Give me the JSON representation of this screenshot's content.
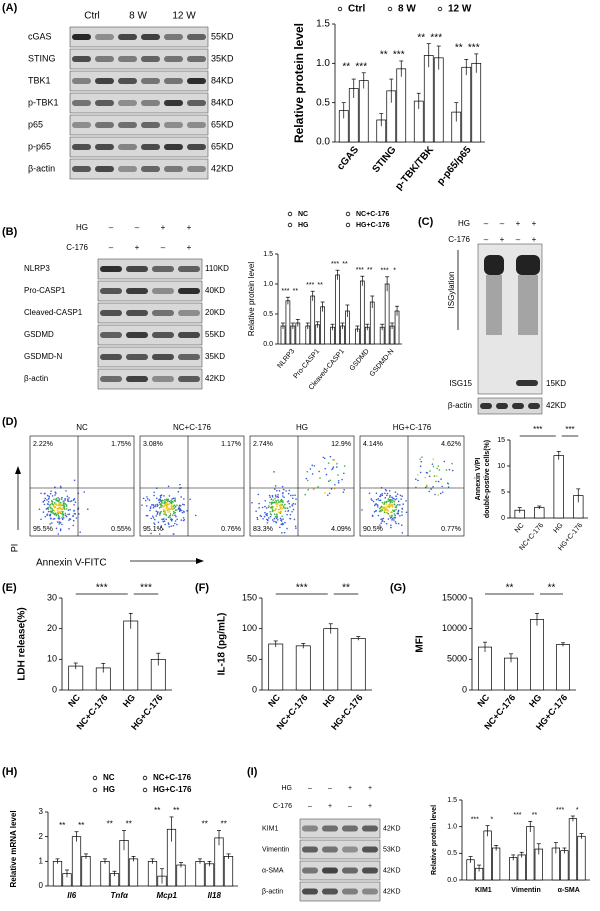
{
  "panel_labels": [
    "(A)",
    "(B)",
    "(C)",
    "(D)",
    "(E)",
    "(F)",
    "(G)",
    "(H)",
    "(I)"
  ],
  "blot_a": {
    "lanes": [
      "Ctrl",
      "8 W",
      "12 W"
    ],
    "rows": [
      {
        "protein": "cGAS",
        "size": "55KD"
      },
      {
        "protein": "STING",
        "size": "35KD"
      },
      {
        "protein": "TBK1",
        "size": "84KD"
      },
      {
        "protein": "p-TBK1",
        "size": "84KD"
      },
      {
        "protein": "p65",
        "size": "65KD"
      },
      {
        "protein": "p-p65",
        "size": "65KD"
      },
      {
        "protein": "β-actin",
        "size": "42KD"
      }
    ]
  },
  "blot_b": {
    "conditions": [
      {
        "name": "HG",
        "marks": [
          "–",
          "–",
          "+",
          "+"
        ]
      },
      {
        "name": "C-176",
        "marks": [
          "–",
          "+",
          "–",
          "+"
        ]
      }
    ],
    "rows": [
      {
        "protein": "NLRP3",
        "size": "110KD"
      },
      {
        "protein": "Pro-CASP1",
        "size": "40KD"
      },
      {
        "protein": "Cleaved-CASP1",
        "size": "20KD"
      },
      {
        "protein": "GSDMD",
        "size": "55KD"
      },
      {
        "protein": "GSDMD-N",
        "size": "35KD"
      },
      {
        "protein": "β-actin",
        "size": "42KD"
      }
    ]
  },
  "blot_c": {
    "conditions": [
      {
        "name": "HG",
        "marks": [
          "–",
          "–",
          "+",
          "+"
        ]
      },
      {
        "name": "C-176",
        "marks": [
          "–",
          "+",
          "–",
          "+"
        ]
      }
    ],
    "smear_label": "ISGylation",
    "rows": [
      {
        "protein": "ISG15",
        "size": "15KD"
      },
      {
        "protein": "β-actin",
        "size": "42KD"
      }
    ]
  },
  "blot_i": {
    "conditions": [
      {
        "name": "HG",
        "marks": [
          "–",
          "–",
          "+",
          "+"
        ]
      },
      {
        "name": "C-176",
        "marks": [
          "–",
          "+",
          "–",
          "+"
        ]
      }
    ],
    "rows": [
      {
        "protein": "KIM1",
        "size": "42KD"
      },
      {
        "protein": "Vimentin",
        "size": "53KD"
      },
      {
        "protein": "α-SMA",
        "size": "42KD"
      },
      {
        "protein": "β-actin",
        "size": "42KD"
      }
    ]
  },
  "flow": {
    "y_label": "PI",
    "x_label": "Annexin V-FITC",
    "plots": [
      {
        "title": "NC",
        "quadrants": [
          "2.22%",
          "1.75%",
          "95.5%",
          "0.55%"
        ]
      },
      {
        "title": "NC+C-176",
        "quadrants": [
          "3.08%",
          "1.17%",
          "95.1%",
          "0.76%"
        ]
      },
      {
        "title": "HG",
        "quadrants": [
          "2.74%",
          "12.9%",
          "83.3%",
          "4.09%"
        ]
      },
      {
        "title": "HG+C-176",
        "quadrants": [
          "4.14%",
          "4.62%",
          "90.5%",
          "0.77%"
        ]
      }
    ]
  },
  "chart_data": [
    {
      "type": "bar",
      "y_label": "Relative protein level",
      "categories": [
        "cGAS",
        "STING",
        "p-TBK/TBK",
        "p-p65/p65"
      ],
      "series": [
        {
          "name": "Ctrl",
          "color": "#ffffff",
          "values": [
            0.4,
            0.28,
            0.52,
            0.38
          ],
          "errors": [
            0.1,
            0.08,
            0.1,
            0.12
          ]
        },
        {
          "name": "8 W",
          "color": "#ffffff",
          "values": [
            0.68,
            0.65,
            1.1,
            0.95
          ],
          "errors": [
            0.12,
            0.15,
            0.15,
            0.1
          ]
        },
        {
          "name": "12 W",
          "color": "#ffffff",
          "values": [
            0.78,
            0.93,
            1.07,
            1.0
          ],
          "errors": [
            0.1,
            0.1,
            0.15,
            0.12
          ]
        }
      ],
      "ylim": [
        0,
        1.5
      ],
      "yticks": [
        {
          "value": 0,
          "label": "0.0"
        },
        0.5,
        {
          "value": 1,
          "label": "1.0"
        },
        1.5
      ],
      "annotations": [
        [
          "**",
          "***"
        ],
        [
          "**",
          "***"
        ],
        [
          "**",
          "***"
        ],
        [
          "**",
          "***"
        ]
      ]
    },
    {
      "type": "bar",
      "y_label": "Relative protein level",
      "categories": [
        "NLRP3",
        "Pro-CASP1",
        "Cleaved-CASP1",
        "GSDMD",
        "GSDMD-N"
      ],
      "series": [
        {
          "name": "NC",
          "color": "#ffffff",
          "values": [
            0.3,
            0.3,
            0.28,
            0.25,
            0.28
          ],
          "errors": [
            0.05,
            0.05,
            0.05,
            0.05,
            0.05
          ]
        },
        {
          "name": "HG",
          "color": "#ffffff",
          "values": [
            0.72,
            0.8,
            1.15,
            1.05,
            1.0
          ],
          "errors": [
            0.06,
            0.08,
            0.08,
            0.08,
            0.12
          ]
        },
        {
          "name": "NC+C-176",
          "color": "#ffffff",
          "values": [
            0.3,
            0.32,
            0.3,
            0.28,
            0.3
          ],
          "errors": [
            0.05,
            0.05,
            0.05,
            0.05,
            0.05
          ]
        },
        {
          "name": "HG+C-176",
          "color": "#ffffff",
          "values": [
            0.35,
            0.62,
            0.55,
            0.7,
            0.55
          ],
          "errors": [
            0.06,
            0.08,
            0.1,
            0.1,
            0.08
          ]
        }
      ],
      "ylim": [
        0,
        1.5
      ],
      "yticks": [
        {
          "value": 0,
          "label": "0.0"
        },
        0.5,
        {
          "value": 1,
          "label": "1.0"
        },
        1.5
      ],
      "annotations": [
        [
          "***",
          "**"
        ],
        [
          "***",
          "**"
        ],
        [
          "***",
          "**"
        ],
        [
          "***",
          "**"
        ],
        [
          "***",
          "*"
        ]
      ]
    },
    {
      "type": "bar",
      "y_label": [
        "Annexin V/PI",
        "double-postive cells(%)"
      ],
      "categories": [
        "NC",
        "NC+C-176",
        "HG",
        "HG+C-176"
      ],
      "values": [
        1.5,
        2,
        12,
        4.3
      ],
      "errors": [
        0.5,
        0.3,
        0.8,
        1.3
      ],
      "color": "#ffffff",
      "ylim": [
        0,
        15
      ],
      "yticks": [
        0,
        5,
        10,
        15
      ],
      "annotations": [
        "***",
        "***"
      ]
    },
    {
      "type": "bar",
      "y_label": "LDH release(%)",
      "categories": [
        "NC",
        "NC+C-176",
        "HG",
        "HG+C-176"
      ],
      "values": [
        7.8,
        7.2,
        22.5,
        10
      ],
      "errors": [
        1,
        1.5,
        2.5,
        2
      ],
      "color": "#ffffff",
      "ylim": [
        0,
        30
      ],
      "yticks": [
        0,
        10,
        20,
        30
      ],
      "annotations": [
        "***",
        "***"
      ]
    },
    {
      "type": "bar",
      "y_label": "IL-18 (pg/mL)",
      "categories": [
        "NC",
        "NC+C-176",
        "HG",
        "HG+C-176"
      ],
      "values": [
        75,
        72,
        100,
        84
      ],
      "errors": [
        5,
        4,
        8,
        3
      ],
      "color": "#ffffff",
      "ylim": [
        0,
        150
      ],
      "yticks": [
        0,
        50,
        100,
        150
      ],
      "annotations": [
        "***",
        "**"
      ]
    },
    {
      "type": "bar",
      "y_label": "MFI",
      "categories": [
        "NC",
        "NC+C-176",
        "HG",
        "HG+C-176"
      ],
      "values": [
        7000,
        5200,
        11500,
        7400
      ],
      "errors": [
        800,
        700,
        1000,
        300
      ],
      "color": "#ffffff",
      "ylim": [
        0,
        15000
      ],
      "yticks": [
        0,
        5000,
        10000,
        15000
      ],
      "annotations": [
        "**",
        "**"
      ]
    },
    {
      "type": "bar",
      "y_label": "Relative mRNA level",
      "categories": [
        "Il6",
        "Tnfα",
        "Mcp1",
        "Il18"
      ],
      "series": [
        {
          "name": "NC",
          "color": "#ffffff",
          "values": [
            1.0,
            1.0,
            1.0,
            1.0
          ],
          "errors": [
            0.1,
            0.1,
            0.1,
            0.1
          ]
        },
        {
          "name": "NC+C-176",
          "color": "#ffffff",
          "values": [
            0.5,
            0.5,
            0.4,
            0.9
          ],
          "errors": [
            0.15,
            0.1,
            0.3,
            0.1
          ]
        },
        {
          "name": "HG",
          "color": "#ffffff",
          "values": [
            2.0,
            1.85,
            2.3,
            1.95
          ],
          "errors": [
            0.2,
            0.4,
            0.5,
            0.3
          ]
        },
        {
          "name": "HG+C-176",
          "color": "#ffffff",
          "values": [
            1.2,
            1.1,
            0.85,
            1.2
          ],
          "errors": [
            0.1,
            0.1,
            0.1,
            0.1
          ]
        }
      ],
      "ylim": [
        0,
        3
      ],
      "yticks": [
        0,
        1,
        2,
        3
      ],
      "annotations": [
        [
          "**",
          "**"
        ],
        [
          "**",
          "**"
        ],
        [
          "**",
          "**"
        ],
        [
          "**",
          "**"
        ]
      ]
    },
    {
      "type": "bar",
      "y_label": "Relative protein level",
      "categories": [
        "KIM1",
        "Vimentin",
        "α-SMA"
      ],
      "series": [
        {
          "name": "NC",
          "color": "#ffffff",
          "values": [
            0.38,
            0.42,
            0.6
          ],
          "errors": [
            0.06,
            0.05,
            0.1
          ]
        },
        {
          "name": "NC+C-176",
          "color": "#ffffff",
          "values": [
            0.22,
            0.47,
            0.55
          ],
          "errors": [
            0.06,
            0.05,
            0.05
          ]
        },
        {
          "name": "HG",
          "color": "#ffffff",
          "values": [
            0.92,
            1.0,
            1.15
          ],
          "errors": [
            0.1,
            0.1,
            0.05
          ]
        },
        {
          "name": "HG+C-176",
          "color": "#ffffff",
          "values": [
            0.6,
            0.58,
            0.82
          ],
          "errors": [
            0.05,
            0.1,
            0.05
          ]
        }
      ],
      "ylim": [
        0,
        1.5
      ],
      "yticks": [
        {
          "value": 0,
          "label": "0.0"
        },
        0.5,
        {
          "value": 1,
          "label": "1.0"
        },
        1.5
      ],
      "annotations": [
        [
          "***",
          "*"
        ],
        [
          "***",
          "**"
        ],
        [
          "***",
          "*"
        ]
      ]
    }
  ]
}
